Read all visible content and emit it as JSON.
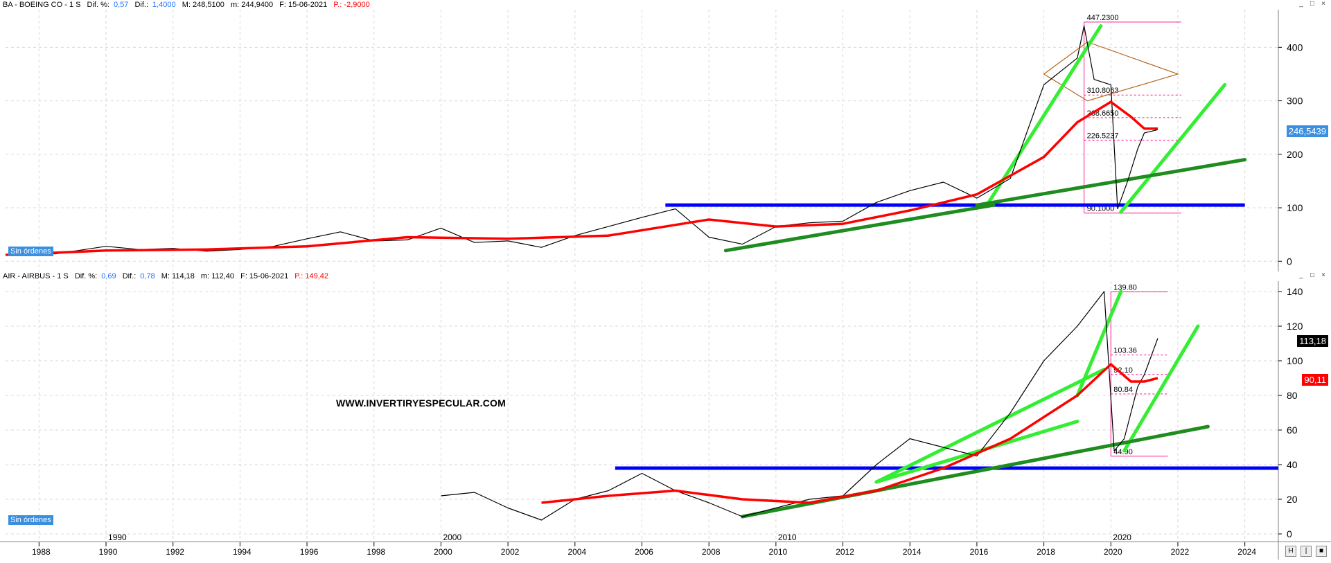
{
  "top_pane": {
    "symbol": "BA - BOEING CO - 1 S",
    "dif_pct_label": "Dif. %:",
    "dif_pct_value": "0,57",
    "dif_label": "Dif.:",
    "dif_value": "1,4000",
    "max_text": "M: 248,5100",
    "min_text": "m: 244,9400",
    "date_text": "F: 15-06-2021",
    "p_text": "P.: -2,9000",
    "order_badge": "Sin órdenes",
    "price_tag": "246,5439",
    "price_tag_color": "#3b8fe0"
  },
  "bottom_pane": {
    "symbol": "AIR - AIRBUS - 1 S",
    "dif_pct_label": "Dif. %:",
    "dif_pct_value": "0,69",
    "dif_label": "Dif.:",
    "dif_value": "0,78",
    "max_text": "M: 114,18",
    "min_text": "m: 112,40",
    "date_text": "F: 15-06-2021",
    "p_text": "P.: 149,42",
    "order_badge": "Sin órdenes",
    "price_tag": "113,18",
    "price_tag_color": "#000000",
    "ma_tag": "90,11",
    "ma_tag_color": "#ff0000",
    "watermark": "WWW.INVERTIRYESPECULAR.COM"
  },
  "window_controls": [
    "_",
    "□",
    "×"
  ],
  "scroll_controls": [
    "H",
    "|",
    "■"
  ],
  "colors": {
    "price": "#000000",
    "moving_average": "#ff0000",
    "trend_light": "#33ee33",
    "trend_dark": "#1e8c1e",
    "support": "#0000ff",
    "fib": "#ff1493",
    "diamond": "#b5651d",
    "grid": "#d8d8d8"
  },
  "chart_data": [
    {
      "type": "line",
      "name": "BA - BOEING CO",
      "ylim": [
        -10,
        460
      ],
      "xlim": [
        1987.0,
        2025.0
      ],
      "y_ticks": [
        0,
        100,
        200,
        300,
        400
      ],
      "x_ticks": [
        1988,
        1990,
        1992,
        1994,
        1996,
        1998,
        2000,
        2002,
        2004,
        2006,
        2008,
        2010,
        2012,
        2014,
        2016,
        2018,
        2020,
        2022,
        2024
      ],
      "price_series": [
        [
          1987.0,
          12
        ],
        [
          1988.5,
          14
        ],
        [
          1990,
          28
        ],
        [
          1991,
          22
        ],
        [
          1992,
          24
        ],
        [
          1993,
          19
        ],
        [
          1994,
          22
        ],
        [
          1995,
          28
        ],
        [
          1996,
          42
        ],
        [
          1997,
          55
        ],
        [
          1998,
          38
        ],
        [
          1999,
          40
        ],
        [
          2000,
          62
        ],
        [
          2001,
          35
        ],
        [
          2002,
          38
        ],
        [
          2003,
          26
        ],
        [
          2004,
          48
        ],
        [
          2005,
          65
        ],
        [
          2006,
          82
        ],
        [
          2007,
          98
        ],
        [
          2008,
          45
        ],
        [
          2009,
          32
        ],
        [
          2010,
          65
        ],
        [
          2011,
          72
        ],
        [
          2012,
          75
        ],
        [
          2013,
          110
        ],
        [
          2014,
          132
        ],
        [
          2015,
          148
        ],
        [
          2016,
          118
        ],
        [
          2017,
          155
        ],
        [
          2018,
          330
        ],
        [
          2019,
          380
        ],
        [
          2019.2,
          440
        ],
        [
          2019.5,
          340
        ],
        [
          2020.0,
          330
        ],
        [
          2020.2,
          98
        ],
        [
          2020.5,
          150
        ],
        [
          2020.8,
          210
        ],
        [
          2021.0,
          240
        ],
        [
          2021.4,
          246
        ]
      ],
      "ma_series": [
        [
          1987.0,
          12
        ],
        [
          1990,
          20
        ],
        [
          1993,
          22
        ],
        [
          1996,
          28
        ],
        [
          1999,
          45
        ],
        [
          2002,
          42
        ],
        [
          2005,
          48
        ],
        [
          2008,
          78
        ],
        [
          2010,
          65
        ],
        [
          2012,
          70
        ],
        [
          2014,
          95
        ],
        [
          2016,
          125
        ],
        [
          2018,
          195
        ],
        [
          2019,
          260
        ],
        [
          2020,
          298
        ],
        [
          2020.6,
          270
        ],
        [
          2021.0,
          248
        ],
        [
          2021.4,
          248
        ]
      ],
      "trend_lines": [
        {
          "style": "light",
          "from": [
            2016.3,
            105
          ],
          "to": [
            2019.7,
            440
          ]
        },
        {
          "style": "light",
          "from": [
            2020.3,
            92
          ],
          "to": [
            2023.4,
            330
          ]
        },
        {
          "style": "dark",
          "from": [
            2008.5,
            20
          ],
          "to": [
            2016.5,
            105
          ]
        },
        {
          "style": "dark",
          "from": [
            2016.0,
            105
          ],
          "to": [
            2024.0,
            190
          ]
        }
      ],
      "support_line": {
        "y": 105,
        "from": 2006.7,
        "to": 2024.0
      },
      "fib_levels": [
        {
          "value": 447.23,
          "label": "447.2300"
        },
        {
          "value": 310.8,
          "label": "310.8063"
        },
        {
          "value": 268.6,
          "label": "268.6650"
        },
        {
          "value": 226.5,
          "label": "226.5237"
        },
        {
          "value": 90.1,
          "label": "90.1000"
        }
      ],
      "fib_range": [
        2019.2,
        2022.1
      ],
      "diamond": {
        "left": [
          2018.0,
          350
        ],
        "top": [
          2019.3,
          410
        ],
        "right": [
          2022.0,
          350
        ],
        "bottom": [
          2019.3,
          300
        ]
      }
    },
    {
      "type": "line",
      "name": "AIR - AIRBUS",
      "ylim": [
        -2,
        146
      ],
      "xlim": [
        1987.0,
        2025.0
      ],
      "y_ticks": [
        0,
        20,
        40,
        60,
        80,
        100,
        120,
        140
      ],
      "x_ticks": [
        1990,
        2000,
        2010,
        2020
      ],
      "price_series": [
        [
          2000,
          22
        ],
        [
          2001,
          24
        ],
        [
          2002,
          15
        ],
        [
          2003,
          8
        ],
        [
          2004,
          20
        ],
        [
          2005,
          25
        ],
        [
          2006,
          35
        ],
        [
          2007,
          25
        ],
        [
          2008,
          18
        ],
        [
          2009,
          10
        ],
        [
          2010,
          15
        ],
        [
          2011,
          20
        ],
        [
          2012,
          22
        ],
        [
          2013,
          40
        ],
        [
          2014,
          55
        ],
        [
          2015,
          50
        ],
        [
          2016,
          45
        ],
        [
          2017,
          70
        ],
        [
          2018,
          100
        ],
        [
          2019,
          120
        ],
        [
          2019.8,
          140
        ],
        [
          2020.1,
          48
        ],
        [
          2020.4,
          55
        ],
        [
          2020.8,
          85
        ],
        [
          2021.0,
          92
        ],
        [
          2021.4,
          113
        ]
      ],
      "ma_series": [
        [
          2003.0,
          18
        ],
        [
          2005,
          22
        ],
        [
          2007,
          25
        ],
        [
          2009,
          20
        ],
        [
          2011,
          18
        ],
        [
          2013,
          25
        ],
        [
          2015,
          38
        ],
        [
          2017,
          55
        ],
        [
          2019,
          80
        ],
        [
          2020.0,
          98
        ],
        [
          2020.6,
          88
        ],
        [
          2021.0,
          88
        ],
        [
          2021.4,
          90
        ]
      ],
      "trend_lines": [
        {
          "style": "light",
          "from": [
            2019.0,
            80
          ],
          "to": [
            2020.3,
            140
          ]
        },
        {
          "style": "light",
          "from": [
            2013.0,
            30
          ],
          "to": [
            2019.8,
            95
          ]
        },
        {
          "style": "light",
          "from": [
            2013.0,
            30
          ],
          "to": [
            2019.0,
            65
          ]
        },
        {
          "style": "light",
          "from": [
            2020.4,
            48
          ],
          "to": [
            2022.6,
            120
          ]
        },
        {
          "style": "dark",
          "from": [
            2009.0,
            10
          ],
          "to": [
            2022.9,
            62
          ]
        }
      ],
      "support_line": {
        "y": 38,
        "from": 2005.2,
        "to": 2025.0
      },
      "fib_levels": [
        {
          "value": 139.8,
          "label": "139.80"
        },
        {
          "value": 103.36,
          "label": "103.36"
        },
        {
          "value": 92.1,
          "label": "92.10"
        },
        {
          "value": 80.84,
          "label": "80.84"
        },
        {
          "value": 44.9,
          "label": "44.90"
        }
      ],
      "fib_range": [
        2020.0,
        2021.7
      ]
    }
  ]
}
